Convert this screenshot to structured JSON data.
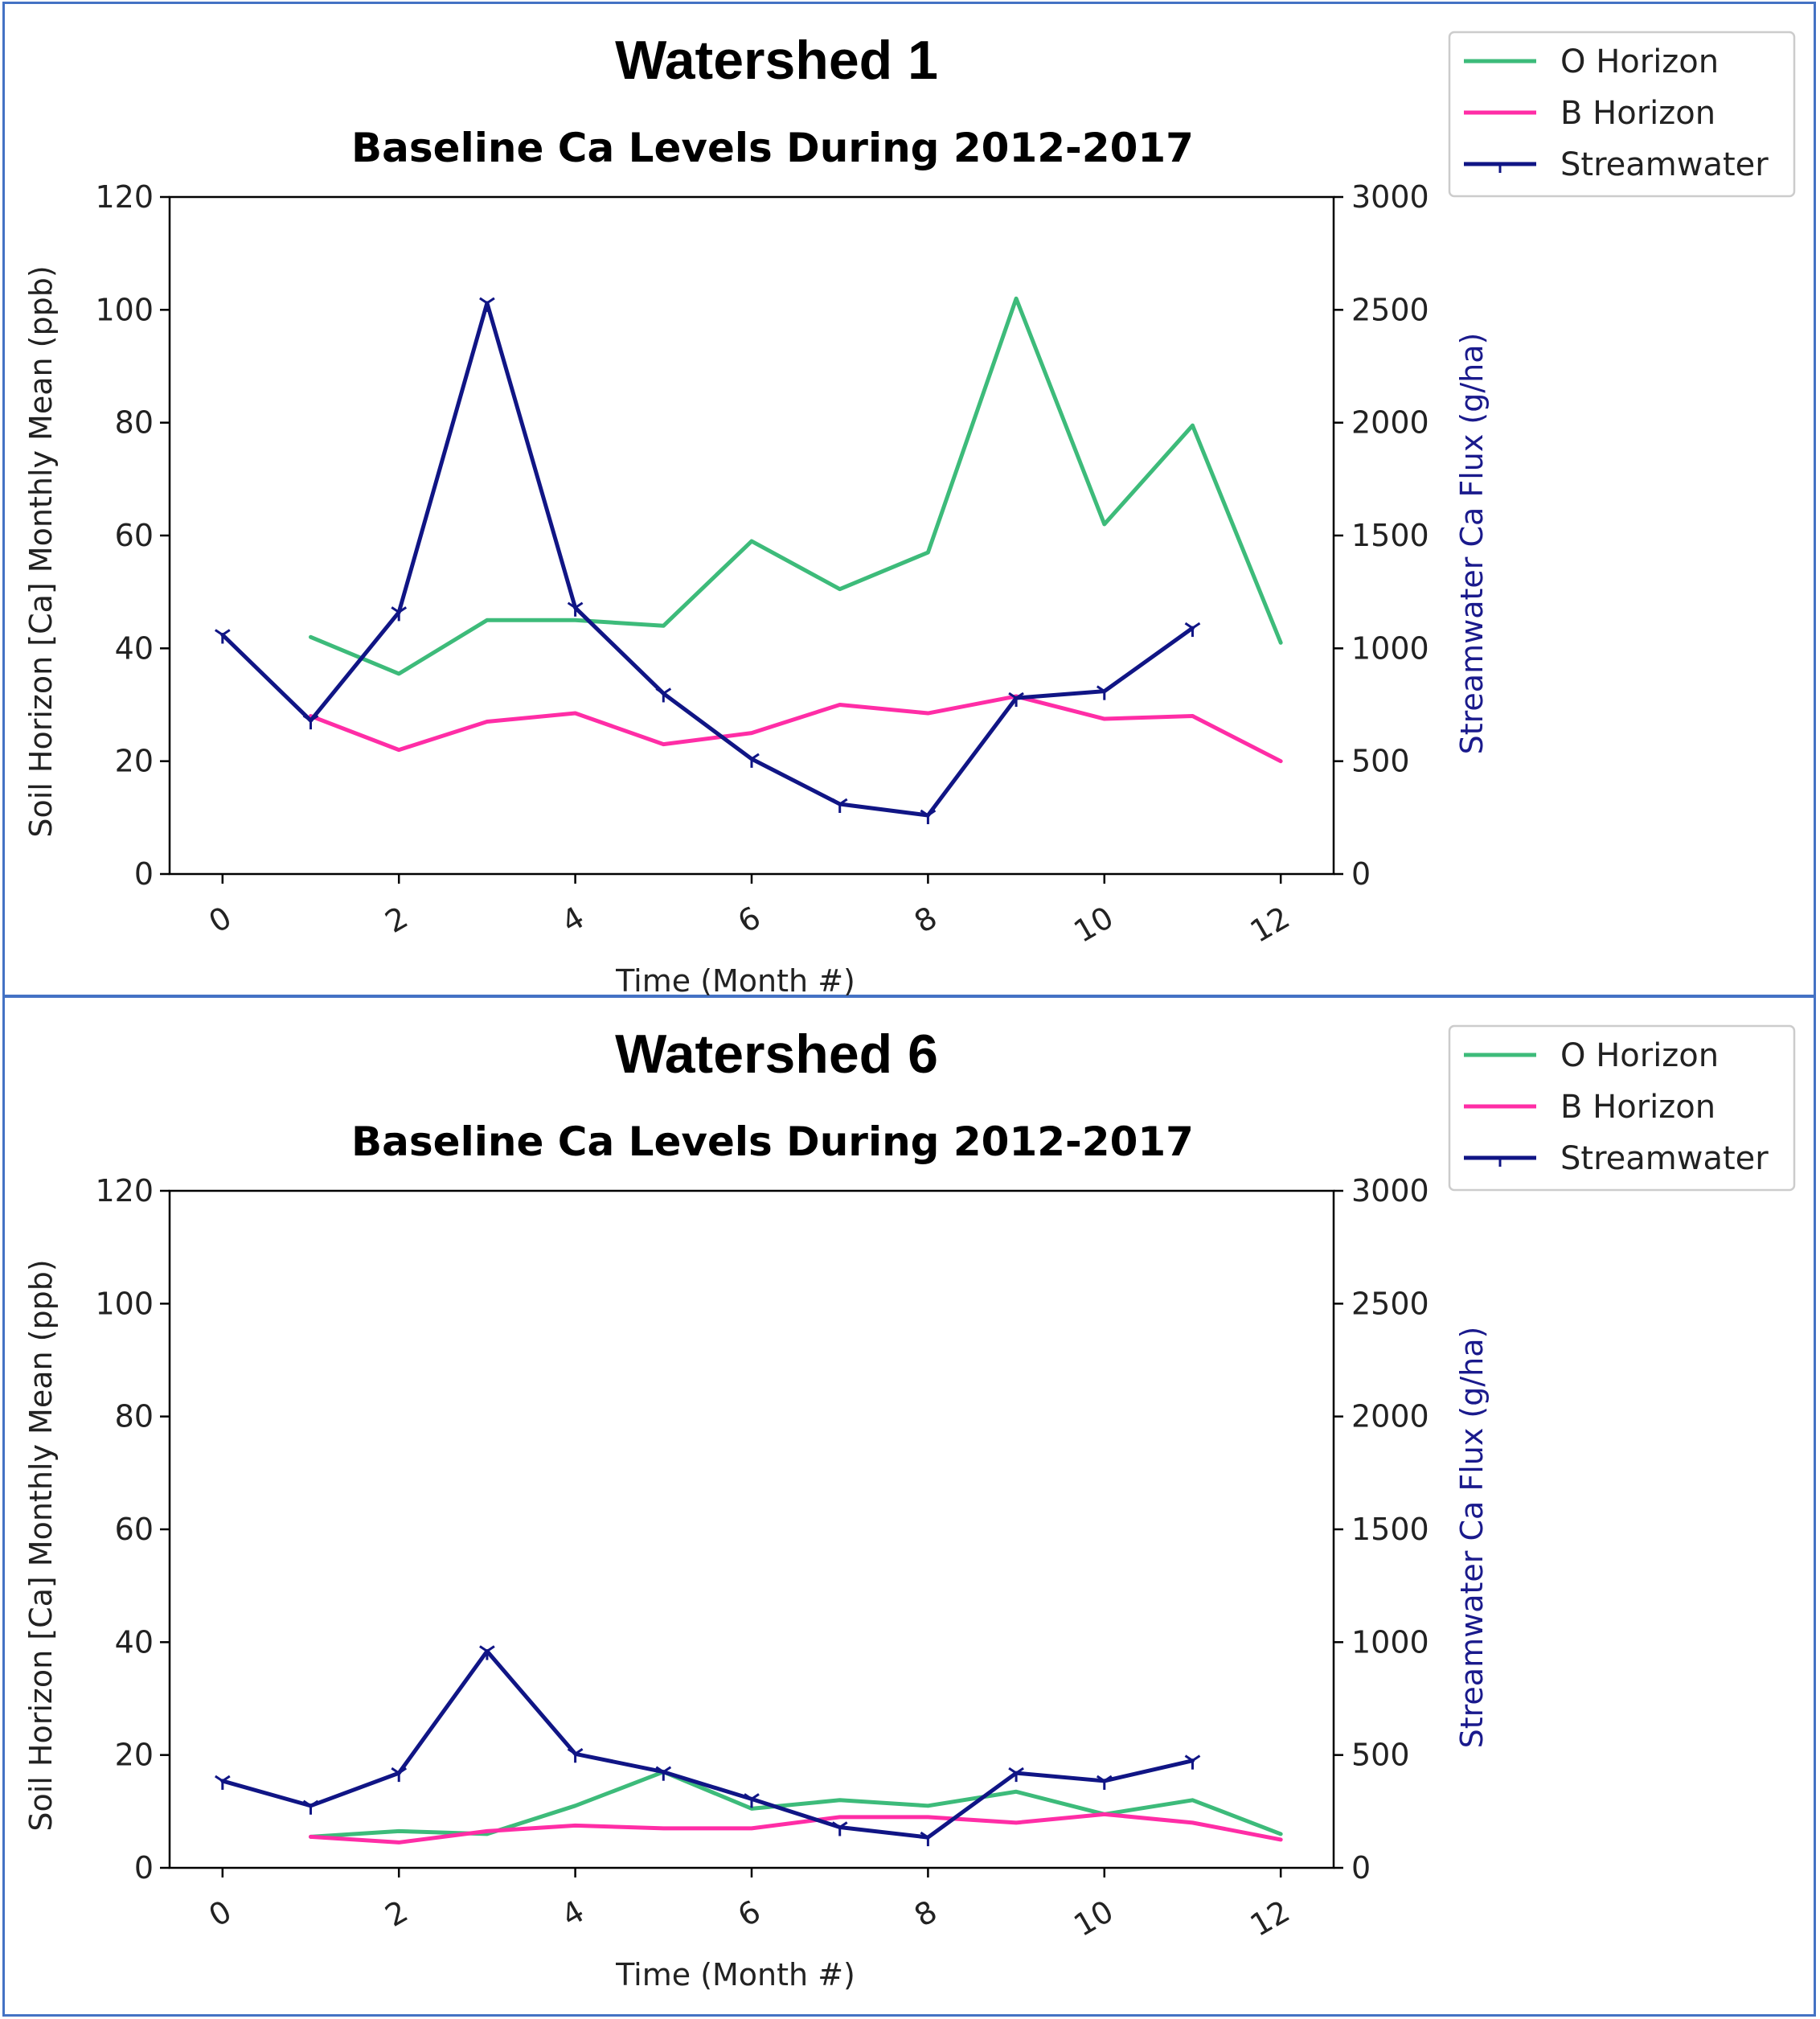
{
  "colors": {
    "o_horizon": "#3dbb7a",
    "b_horizon": "#ff2da6",
    "streamwater": "#101585",
    "frame": "#4472C4"
  },
  "chart_data": [
    {
      "type": "line",
      "panel_title": "Watershed 1",
      "title": "Baseline Ca Levels During 2012-2017",
      "xlabel": "Time (Month #)",
      "ylabel": "Soil Horizon [Ca] Monthly Mean (ppb)",
      "y2label": "Streamwater Ca Flux (g/ha)",
      "xlim": [
        -0.6,
        12.6
      ],
      "ylim": [
        0,
        120
      ],
      "y2lim": [
        0,
        3000
      ],
      "xticks": [
        0,
        2,
        4,
        6,
        8,
        10,
        12
      ],
      "yticks": [
        0,
        20,
        40,
        60,
        80,
        100,
        120
      ],
      "y2ticks": [
        0,
        500,
        1000,
        1500,
        2000,
        2500,
        3000
      ],
      "legend_position": "upper-right",
      "series": [
        {
          "name": "O Horizon",
          "axis": "left",
          "color_key": "o_horizon",
          "x": [
            1,
            2,
            3,
            4,
            5,
            6,
            7,
            8,
            9,
            10,
            11,
            12
          ],
          "y": [
            42,
            35.5,
            45,
            45,
            44,
            59,
            50.5,
            57,
            102,
            62,
            79.5,
            41
          ]
        },
        {
          "name": "B Horizon",
          "axis": "left",
          "color_key": "b_horizon",
          "x": [
            1,
            2,
            3,
            4,
            5,
            6,
            7,
            8,
            9,
            10,
            11,
            12
          ],
          "y": [
            28,
            22,
            27,
            28.5,
            23,
            25,
            30,
            28.5,
            31.5,
            27.5,
            28,
            20
          ]
        },
        {
          "name": "Streamwater",
          "axis": "right",
          "color_key": "streamwater",
          "marker": "tri_down",
          "x": [
            0,
            1,
            2,
            3,
            4,
            5,
            6,
            7,
            8,
            9,
            10,
            11
          ],
          "y": [
            1060,
            680,
            1160,
            2530,
            1180,
            800,
            510,
            310,
            260,
            780,
            810,
            1090
          ]
        }
      ]
    },
    {
      "type": "line",
      "panel_title": "Watershed 6",
      "title": "Baseline Ca Levels During 2012-2017",
      "xlabel": "Time (Month #)",
      "ylabel": "Soil Horizon [Ca] Monthly Mean (ppb)",
      "y2label": "Streamwater Ca Flux (g/ha)",
      "xlim": [
        -0.6,
        12.6
      ],
      "ylim": [
        0,
        120
      ],
      "y2lim": [
        0,
        3000
      ],
      "xticks": [
        0,
        2,
        4,
        6,
        8,
        10,
        12
      ],
      "yticks": [
        0,
        20,
        40,
        60,
        80,
        100,
        120
      ],
      "y2ticks": [
        0,
        500,
        1000,
        1500,
        2000,
        2500,
        3000
      ],
      "legend_position": "upper-right",
      "series": [
        {
          "name": "O Horizon",
          "axis": "left",
          "color_key": "o_horizon",
          "x": [
            1,
            2,
            3,
            4,
            5,
            6,
            7,
            8,
            9,
            10,
            11,
            12
          ],
          "y": [
            5.5,
            6.5,
            6,
            11,
            17,
            10.5,
            12,
            11,
            13.5,
            9.5,
            12,
            6
          ]
        },
        {
          "name": "B Horizon",
          "axis": "left",
          "color_key": "b_horizon",
          "x": [
            1,
            2,
            3,
            4,
            5,
            6,
            7,
            8,
            9,
            10,
            11,
            12
          ],
          "y": [
            5.5,
            4.5,
            6.5,
            7.5,
            7,
            7,
            9,
            9,
            8,
            9.5,
            8,
            5
          ]
        },
        {
          "name": "Streamwater",
          "axis": "right",
          "color_key": "streamwater",
          "marker": "tri_down",
          "x": [
            0,
            1,
            2,
            3,
            4,
            5,
            6,
            7,
            8,
            9,
            10,
            11
          ],
          "y": [
            385,
            275,
            420,
            960,
            505,
            425,
            305,
            180,
            135,
            420,
            385,
            475
          ]
        }
      ]
    }
  ]
}
